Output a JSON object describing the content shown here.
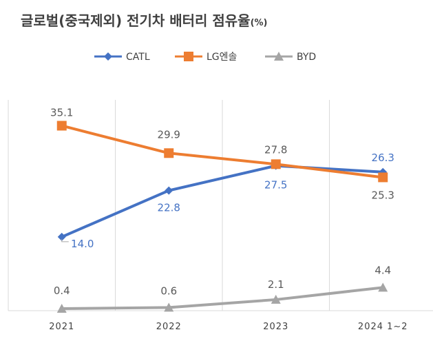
{
  "title": "글로벌(중국제외) 전기차 배터리 점유율",
  "title_unit": "(%)",
  "chart_data": {
    "type": "line",
    "title": "글로벌(중국제외) 전기차 배터리 점유율(%)",
    "categories": [
      "2021",
      "2022",
      "2023",
      "2024 1~2"
    ],
    "ylim": [
      0,
      40
    ],
    "legend_position": "top",
    "grid": "vertical",
    "series": [
      {
        "name": "CATL",
        "values": [
          14.0,
          22.8,
          27.5,
          26.3
        ],
        "color": "#4472C4",
        "marker": "diamond",
        "labels": [
          "14.0",
          "22.8",
          "27.5",
          "26.3"
        ]
      },
      {
        "name": "LG엔솔",
        "values": [
          35.1,
          29.9,
          27.8,
          25.3
        ],
        "color": "#ED7D31",
        "marker": "square",
        "labels": [
          "35.1",
          "29.9",
          "27.8",
          "25.3"
        ]
      },
      {
        "name": "BYD",
        "values": [
          0.4,
          0.6,
          2.1,
          4.4
        ],
        "color": "#A5A5A5",
        "marker": "triangle",
        "labels": [
          "0.4",
          "0.6",
          "2.1",
          "4.4"
        ]
      }
    ]
  }
}
